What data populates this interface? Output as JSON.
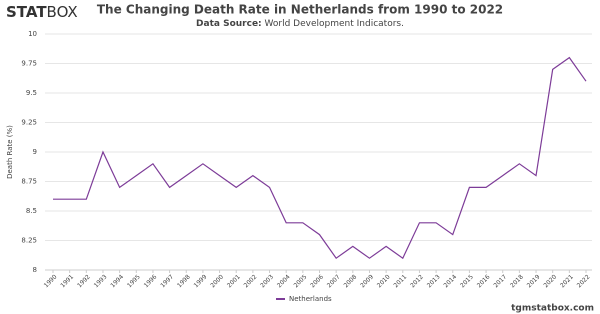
{
  "logo": {
    "bold": "STAT",
    "light": "BOX"
  },
  "chart_data": {
    "type": "line",
    "title": "The Changing Death Rate in Netherlands from 1990 to 2022",
    "subtitle_label": "Data Source:",
    "subtitle": "World Development Indicators.",
    "y_label": "Death Rate (%)",
    "categories": [
      "1990",
      "1991",
      "1992",
      "1993",
      "1994",
      "1995",
      "1996",
      "1997",
      "1998",
      "1999",
      "2000",
      "2001",
      "2002",
      "2003",
      "2004",
      "2005",
      "2006",
      "2007",
      "2008",
      "2009",
      "2010",
      "2011",
      "2012",
      "2013",
      "2014",
      "2015",
      "2016",
      "2017",
      "2018",
      "2019",
      "2020",
      "2021",
      "2022"
    ],
    "series": [
      {
        "name": "Netherlands",
        "color": "#7d3c98",
        "values": [
          8.6,
          8.6,
          8.6,
          9.0,
          8.7,
          8.8,
          8.9,
          8.7,
          8.8,
          8.9,
          8.8,
          8.7,
          8.8,
          8.7,
          8.4,
          8.4,
          8.3,
          8.1,
          8.2,
          8.1,
          8.2,
          8.1,
          8.4,
          8.4,
          8.3,
          8.7,
          8.7,
          8.8,
          8.9,
          8.8,
          9.7,
          9.8,
          9.6
        ]
      }
    ],
    "ylim": [
      8,
      10
    ],
    "yticks": [
      8,
      8.25,
      8.5,
      8.75,
      9,
      9.25,
      9.5,
      9.75,
      10
    ],
    "grid": true
  },
  "footer": "tgmstatbox.com"
}
